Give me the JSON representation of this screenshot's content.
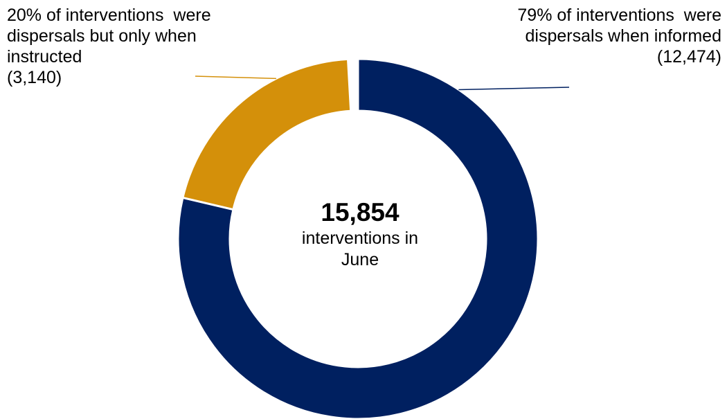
{
  "chart_data": {
    "type": "pie",
    "style": "donut",
    "total": 15854,
    "slices": [
      {
        "value": 12474,
        "percent": 79,
        "color": "#002060",
        "label_lines": [
          "79% of interventions  were",
          "dispersals when informed",
          "(12,474)"
        ]
      },
      {
        "value": 3140,
        "percent": 20,
        "color": "#D4900A",
        "label_lines": [
          "20% of interventions  were",
          "dispersals but only when",
          "instructed",
          "(3,140)"
        ]
      }
    ],
    "center": {
      "total_label": "15,854",
      "caption_lines": [
        "interventions in",
        "June"
      ]
    }
  }
}
